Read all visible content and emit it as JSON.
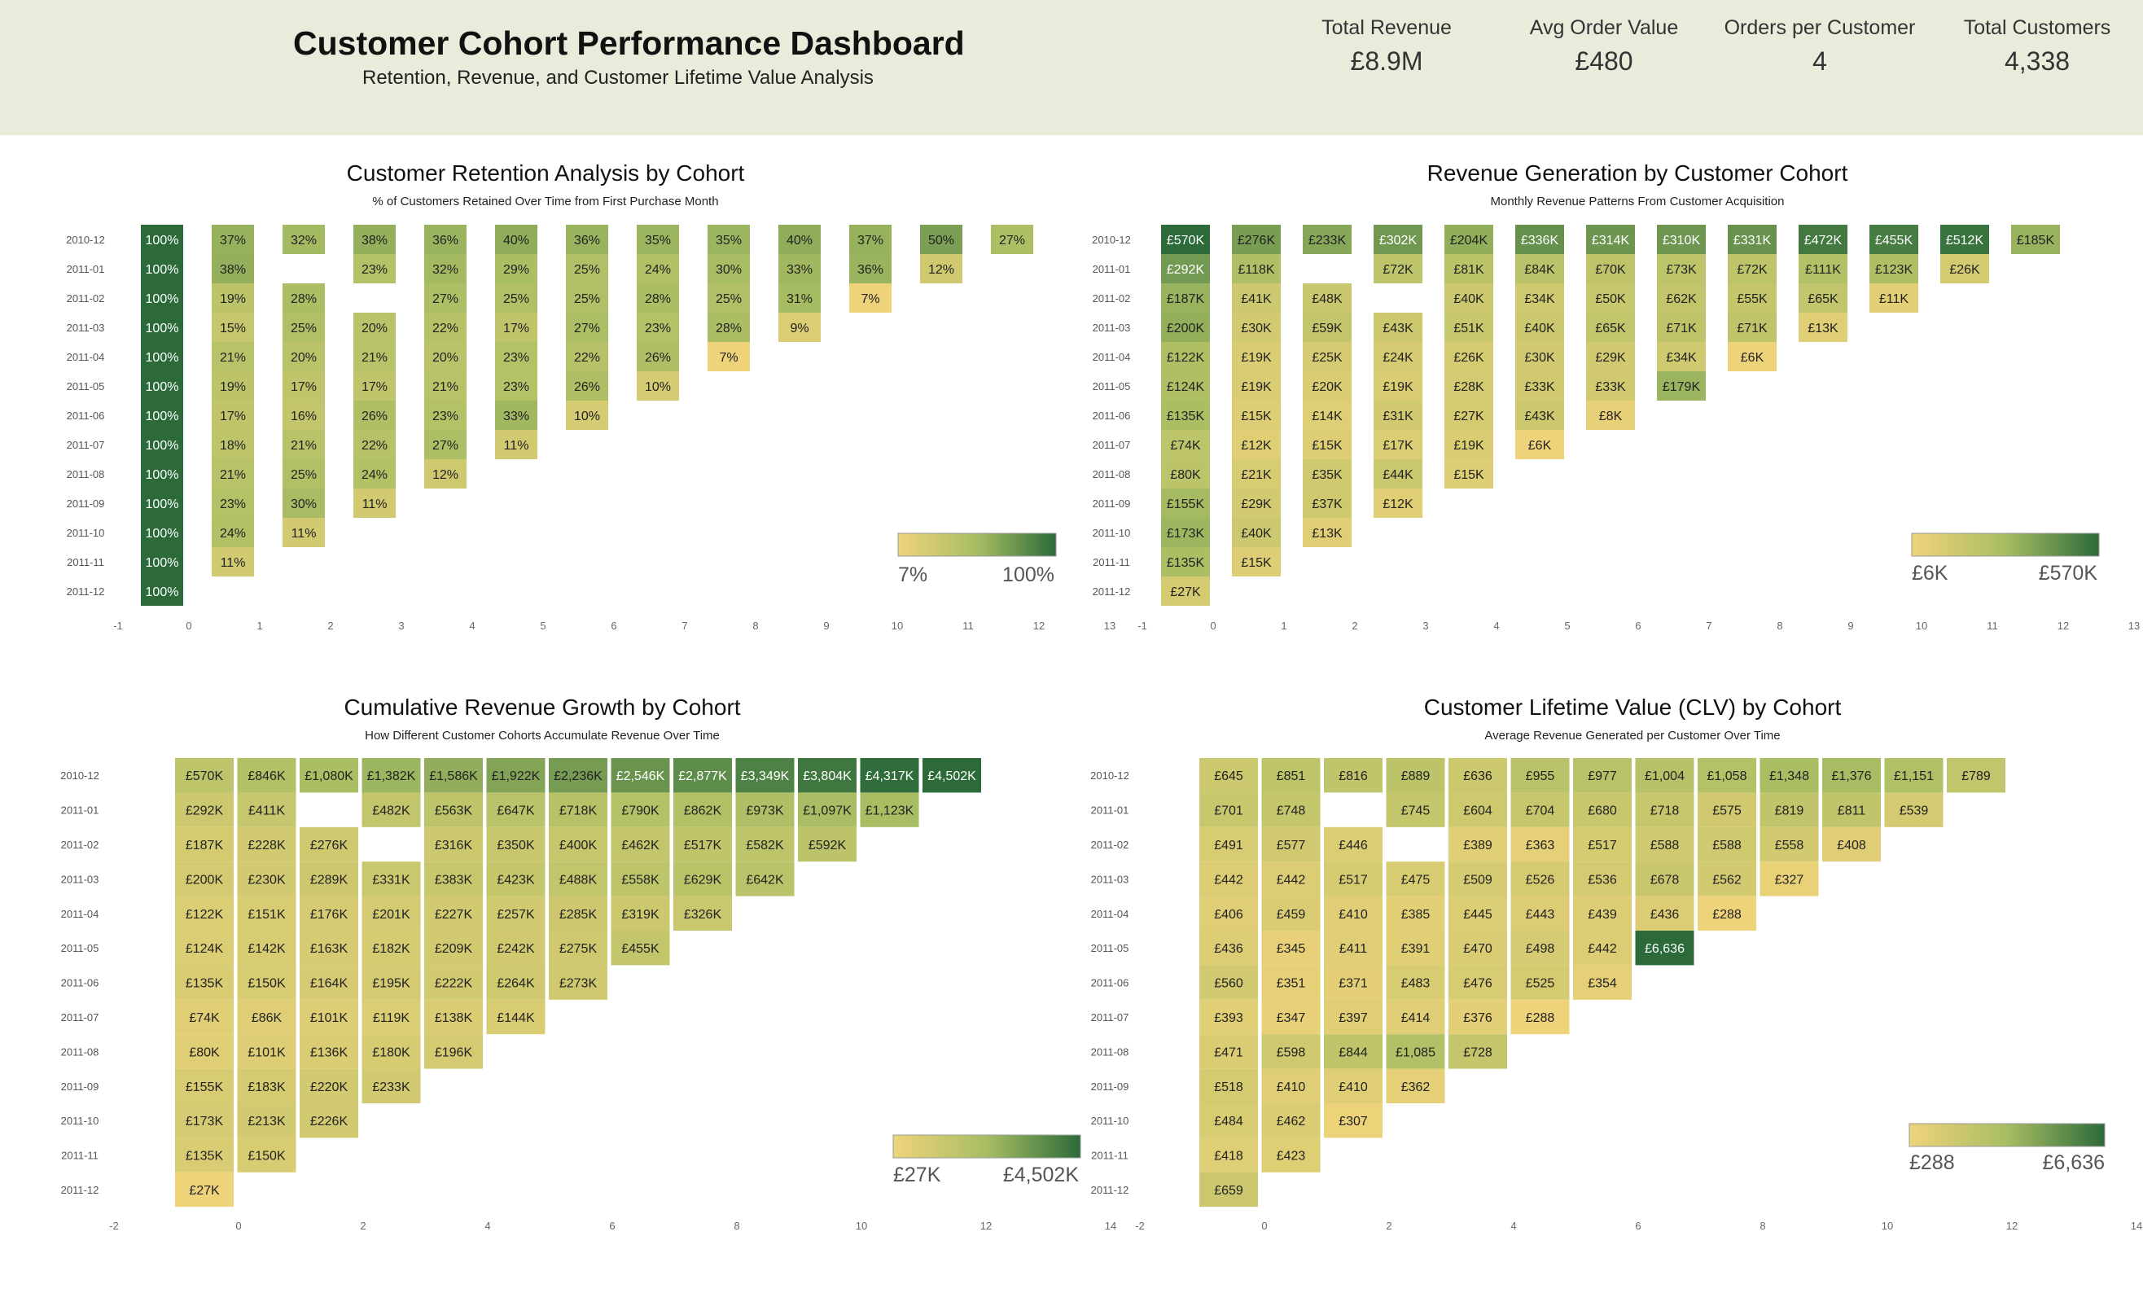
{
  "header": {
    "title": "Customer Cohort Performance Dashboard",
    "subtitle": "Retention, Revenue, and Customer Lifetime Value Analysis",
    "kpis": [
      {
        "label": "Total Revenue",
        "value": "£8.9M"
      },
      {
        "label": "Avg Order Value",
        "value": "£480"
      },
      {
        "label": "Orders per Customer",
        "value": "4"
      },
      {
        "label": "Total Customers",
        "value": "4,338"
      }
    ]
  },
  "colors": {
    "header_bg": "#e8ecdb",
    "scale_low": "#efd37a",
    "scale_mid": "#a8bd63",
    "scale_high": "#2c6a3a"
  },
  "chart_data": [
    {
      "type": "heatmap",
      "title": "Customer Retention Analysis by Cohort",
      "subtitle": "% of Customers Retained Over Time from First Purchase Month",
      "rows": [
        "2010-12",
        "2011-01",
        "2011-02",
        "2011-03",
        "2011-04",
        "2011-05",
        "2011-06",
        "2011-07",
        "2011-08",
        "2011-09",
        "2011-10",
        "2011-11",
        "2011-12"
      ],
      "x_ticks": [
        -1,
        0,
        1,
        2,
        3,
        4,
        5,
        6,
        7,
        8,
        9,
        10,
        11,
        12,
        13
      ],
      "xlim": [
        -1,
        13
      ],
      "value_range": [
        7,
        100
      ],
      "legend": {
        "min_label": "7%",
        "max_label": "100%",
        "placement": "bottom-right"
      },
      "values": [
        [
          100,
          37,
          32,
          38,
          36,
          40,
          36,
          35,
          35,
          40,
          37,
          50,
          27
        ],
        [
          100,
          38,
          null,
          23,
          32,
          29,
          25,
          24,
          30,
          33,
          36,
          12
        ],
        [
          100,
          19,
          28,
          null,
          27,
          25,
          25,
          28,
          25,
          31,
          7
        ],
        [
          100,
          15,
          25,
          20,
          22,
          17,
          27,
          23,
          28,
          9
        ],
        [
          100,
          21,
          20,
          21,
          20,
          23,
          22,
          26,
          7
        ],
        [
          100,
          19,
          17,
          17,
          21,
          23,
          26,
          10
        ],
        [
          100,
          17,
          16,
          26,
          23,
          33,
          10
        ],
        [
          100,
          18,
          21,
          22,
          27,
          11
        ],
        [
          100,
          21,
          25,
          24,
          12
        ],
        [
          100,
          23,
          30,
          11
        ],
        [
          100,
          24,
          11
        ],
        [
          100,
          11
        ],
        [
          100
        ]
      ],
      "labels": [
        [
          "100%",
          "37%",
          "32%",
          "38%",
          "36%",
          "40%",
          "36%",
          "35%",
          "35%",
          "40%",
          "37%",
          "50%",
          "27%"
        ],
        [
          "100%",
          "38%",
          "",
          "23%",
          "32%",
          "29%",
          "25%",
          "24%",
          "30%",
          "33%",
          "36%",
          "12%"
        ],
        [
          "100%",
          "19%",
          "28%",
          "",
          "27%",
          "25%",
          "25%",
          "28%",
          "25%",
          "31%",
          "7%"
        ],
        [
          "100%",
          "15%",
          "25%",
          "20%",
          "22%",
          "17%",
          "27%",
          "23%",
          "28%",
          "9%"
        ],
        [
          "100%",
          "21%",
          "20%",
          "21%",
          "20%",
          "23%",
          "22%",
          "26%",
          "7%"
        ],
        [
          "100%",
          "19%",
          "17%",
          "17%",
          "21%",
          "23%",
          "26%",
          "10%"
        ],
        [
          "100%",
          "17%",
          "16%",
          "26%",
          "23%",
          "33%",
          "10%"
        ],
        [
          "100%",
          "18%",
          "21%",
          "22%",
          "27%",
          "11%"
        ],
        [
          "100%",
          "21%",
          "25%",
          "24%",
          "12%"
        ],
        [
          "100%",
          "23%",
          "30%",
          "11%"
        ],
        [
          "100%",
          "24%",
          "11%"
        ],
        [
          "100%",
          "11%"
        ],
        [
          "100%"
        ]
      ]
    },
    {
      "type": "heatmap",
      "title": "Revenue Generation by Customer Cohort",
      "subtitle": "Monthly Revenue Patterns From Customer Acquisition",
      "rows": [
        "2010-12",
        "2011-01",
        "2011-02",
        "2011-03",
        "2011-04",
        "2011-05",
        "2011-06",
        "2011-07",
        "2011-08",
        "2011-09",
        "2011-10",
        "2011-11",
        "2011-12"
      ],
      "x_ticks": [
        -1,
        0,
        1,
        2,
        3,
        4,
        5,
        6,
        7,
        8,
        9,
        10,
        11,
        12,
        13
      ],
      "xlim": [
        -1,
        13
      ],
      "value_range": [
        6,
        570
      ],
      "legend": {
        "min_label": "£6K",
        "max_label": "£570K",
        "placement": "bottom-right"
      },
      "values": [
        [
          570,
          276,
          233,
          302,
          204,
          336,
          314,
          310,
          331,
          472,
          455,
          512,
          185
        ],
        [
          292,
          118,
          null,
          72,
          81,
          84,
          70,
          73,
          72,
          111,
          123,
          26
        ],
        [
          187,
          41,
          48,
          null,
          40,
          34,
          50,
          62,
          55,
          65,
          11
        ],
        [
          200,
          30,
          59,
          43,
          51,
          40,
          65,
          71,
          71,
          13
        ],
        [
          122,
          19,
          25,
          24,
          26,
          30,
          29,
          34,
          6
        ],
        [
          124,
          19,
          20,
          19,
          28,
          33,
          33,
          179
        ],
        [
          135,
          15,
          14,
          31,
          27,
          43,
          8
        ],
        [
          74,
          12,
          15,
          17,
          19,
          6
        ],
        [
          80,
          21,
          35,
          44,
          15
        ],
        [
          155,
          29,
          37,
          12
        ],
        [
          173,
          40,
          13
        ],
        [
          135,
          15
        ],
        [
          27
        ]
      ],
      "labels": [
        [
          "£570K",
          "£276K",
          "£233K",
          "£302K",
          "£204K",
          "£336K",
          "£314K",
          "£310K",
          "£331K",
          "£472K",
          "£455K",
          "£512K",
          "£185K"
        ],
        [
          "£292K",
          "£118K",
          "",
          "£72K",
          "£81K",
          "£84K",
          "£70K",
          "£73K",
          "£72K",
          "£111K",
          "£123K",
          "£26K"
        ],
        [
          "£187K",
          "£41K",
          "£48K",
          "",
          "£40K",
          "£34K",
          "£50K",
          "£62K",
          "£55K",
          "£65K",
          "£11K"
        ],
        [
          "£200K",
          "£30K",
          "£59K",
          "£43K",
          "£51K",
          "£40K",
          "£65K",
          "£71K",
          "£71K",
          "£13K"
        ],
        [
          "£122K",
          "£19K",
          "£25K",
          "£24K",
          "£26K",
          "£30K",
          "£29K",
          "£34K",
          "£6K"
        ],
        [
          "£124K",
          "£19K",
          "£20K",
          "£19K",
          "£28K",
          "£33K",
          "£33K",
          "£179K"
        ],
        [
          "£135K",
          "£15K",
          "£14K",
          "£31K",
          "£27K",
          "£43K",
          "£8K"
        ],
        [
          "£74K",
          "£12K",
          "£15K",
          "£17K",
          "£19K",
          "£6K"
        ],
        [
          "£80K",
          "£21K",
          "£35K",
          "£44K",
          "£15K"
        ],
        [
          "£155K",
          "£29K",
          "£37K",
          "£12K"
        ],
        [
          "£173K",
          "£40K",
          "£13K"
        ],
        [
          "£135K",
          "£15K"
        ],
        [
          "£27K"
        ]
      ]
    },
    {
      "type": "heatmap",
      "title": "Cumulative Revenue Growth by Cohort",
      "subtitle": "How Different Customer Cohorts Accumulate Revenue Over Time",
      "rows": [
        "2010-12",
        "2011-01",
        "2011-02",
        "2011-03",
        "2011-04",
        "2011-05",
        "2011-06",
        "2011-07",
        "2011-08",
        "2011-09",
        "2011-10",
        "2011-11",
        "2011-12"
      ],
      "x_ticks": [
        -2,
        0,
        2,
        4,
        6,
        8,
        10,
        12,
        14
      ],
      "xlim": [
        -2,
        14
      ],
      "value_range": [
        27,
        4502
      ],
      "legend": {
        "min_label": "£27K",
        "max_label": "£4,502K",
        "placement": "bottom-right"
      },
      "values": [
        [
          570,
          846,
          1080,
          1382,
          1586,
          1922,
          2236,
          2546,
          2877,
          3349,
          3804,
          4317,
          4502
        ],
        [
          292,
          411,
          null,
          482,
          563,
          647,
          718,
          790,
          862,
          973,
          1097,
          1123
        ],
        [
          187,
          228,
          276,
          null,
          316,
          350,
          400,
          462,
          517,
          582,
          592
        ],
        [
          200,
          230,
          289,
          331,
          383,
          423,
          488,
          558,
          629,
          642
        ],
        [
          122,
          151,
          176,
          201,
          227,
          257,
          285,
          319,
          326
        ],
        [
          124,
          142,
          163,
          182,
          209,
          242,
          275,
          455
        ],
        [
          135,
          150,
          164,
          195,
          222,
          264,
          273
        ],
        [
          74,
          86,
          101,
          119,
          138,
          144
        ],
        [
          80,
          101,
          136,
          180,
          196
        ],
        [
          155,
          183,
          220,
          233
        ],
        [
          173,
          213,
          226
        ],
        [
          135,
          150
        ],
        [
          27
        ]
      ],
      "labels": [
        [
          "£570K",
          "£846K",
          "£1,080K",
          "£1,382K",
          "£1,586K",
          "£1,922K",
          "£2,236K",
          "£2,546K",
          "£2,877K",
          "£3,349K",
          "£3,804K",
          "£4,317K",
          "£4,502K"
        ],
        [
          "£292K",
          "£411K",
          "",
          "£482K",
          "£563K",
          "£647K",
          "£718K",
          "£790K",
          "£862K",
          "£973K",
          "£1,097K",
          "£1,123K"
        ],
        [
          "£187K",
          "£228K",
          "£276K",
          "",
          "£316K",
          "£350K",
          "£400K",
          "£462K",
          "£517K",
          "£582K",
          "£592K"
        ],
        [
          "£200K",
          "£230K",
          "£289K",
          "£331K",
          "£383K",
          "£423K",
          "£488K",
          "£558K",
          "£629K",
          "£642K"
        ],
        [
          "£122K",
          "£151K",
          "£176K",
          "£201K",
          "£227K",
          "£257K",
          "£285K",
          "£319K",
          "£326K"
        ],
        [
          "£124K",
          "£142K",
          "£163K",
          "£182K",
          "£209K",
          "£242K",
          "£275K",
          "£455K"
        ],
        [
          "£135K",
          "£150K",
          "£164K",
          "£195K",
          "£222K",
          "£264K",
          "£273K"
        ],
        [
          "£74K",
          "£86K",
          "£101K",
          "£119K",
          "£138K",
          "£144K"
        ],
        [
          "£80K",
          "£101K",
          "£136K",
          "£180K",
          "£196K"
        ],
        [
          "£155K",
          "£183K",
          "£220K",
          "£233K"
        ],
        [
          "£173K",
          "£213K",
          "£226K"
        ],
        [
          "£135K",
          "£150K"
        ],
        [
          "£27K"
        ]
      ]
    },
    {
      "type": "heatmap",
      "title": "Customer Lifetime Value (CLV) by Cohort",
      "subtitle": "Average Revenue Generated per Customer Over Time",
      "rows": [
        "2010-12",
        "2011-01",
        "2011-02",
        "2011-03",
        "2011-04",
        "2011-05",
        "2011-06",
        "2011-07",
        "2011-08",
        "2011-09",
        "2011-10",
        "2011-11",
        "2011-12"
      ],
      "x_ticks": [
        -2,
        0,
        2,
        4,
        6,
        8,
        10,
        12,
        14
      ],
      "xlim": [
        -2,
        14
      ],
      "value_range": [
        288,
        6636
      ],
      "legend": {
        "min_label": "£288",
        "max_label": "£6,636",
        "placement": "bottom-right"
      },
      "values": [
        [
          645,
          851,
          816,
          889,
          636,
          955,
          977,
          1004,
          1058,
          1348,
          1376,
          1151,
          789
        ],
        [
          701,
          748,
          null,
          745,
          604,
          704,
          680,
          718,
          575,
          819,
          811,
          539
        ],
        [
          491,
          577,
          446,
          null,
          389,
          363,
          517,
          588,
          588,
          558,
          408
        ],
        [
          442,
          442,
          517,
          475,
          509,
          526,
          536,
          678,
          562,
          327
        ],
        [
          406,
          459,
          410,
          385,
          445,
          443,
          439,
          436,
          288
        ],
        [
          436,
          345,
          411,
          391,
          470,
          498,
          442,
          6636
        ],
        [
          560,
          351,
          371,
          483,
          476,
          525,
          354
        ],
        [
          393,
          347,
          397,
          414,
          376,
          288
        ],
        [
          471,
          598,
          844,
          1085,
          728
        ],
        [
          518,
          410,
          410,
          362
        ],
        [
          484,
          462,
          307
        ],
        [
          418,
          423
        ],
        [
          659
        ]
      ],
      "labels": [
        [
          "£645",
          "£851",
          "£816",
          "£889",
          "£636",
          "£955",
          "£977",
          "£1,004",
          "£1,058",
          "£1,348",
          "£1,376",
          "£1,151",
          "£789"
        ],
        [
          "£701",
          "£748",
          "",
          "£745",
          "£604",
          "£704",
          "£680",
          "£718",
          "£575",
          "£819",
          "£811",
          "£539"
        ],
        [
          "£491",
          "£577",
          "£446",
          "",
          "£389",
          "£363",
          "£517",
          "£588",
          "£588",
          "£558",
          "£408"
        ],
        [
          "£442",
          "£442",
          "£517",
          "£475",
          "£509",
          "£526",
          "£536",
          "£678",
          "£562",
          "£327"
        ],
        [
          "£406",
          "£459",
          "£410",
          "£385",
          "£445",
          "£443",
          "£439",
          "£436",
          "£288"
        ],
        [
          "£436",
          "£345",
          "£411",
          "£391",
          "£470",
          "£498",
          "£442",
          "£6,636"
        ],
        [
          "£560",
          "£351",
          "£371",
          "£483",
          "£476",
          "£525",
          "£354"
        ],
        [
          "£393",
          "£347",
          "£397",
          "£414",
          "£376",
          "£288"
        ],
        [
          "£471",
          "£598",
          "£844",
          "£1,085",
          "£728"
        ],
        [
          "£518",
          "£410",
          "£410",
          "£362"
        ],
        [
          "£484",
          "£462",
          "£307"
        ],
        [
          "£418",
          "£423"
        ],
        [
          "£659"
        ]
      ]
    }
  ]
}
